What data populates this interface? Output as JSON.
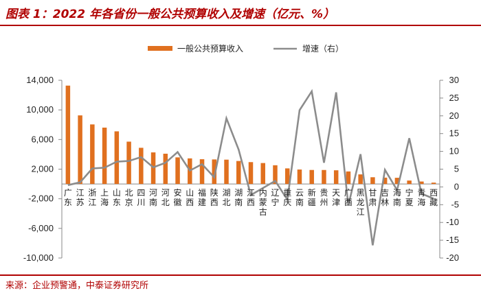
{
  "header": {
    "title": "图表 1：2022 年各省份一般公共预算收入及增速（亿元、%）"
  },
  "footer": {
    "source": "来源：企业预警通，中泰证券研究所"
  },
  "colors": {
    "bar": "#e0701f",
    "line": "#8c8c8c",
    "accent": "#b00000"
  },
  "chart_data": {
    "type": "bar",
    "title": "",
    "legend_position": "top",
    "grid": false,
    "categories": [
      "广东",
      "江苏",
      "浙江",
      "上海",
      "山东",
      "北京",
      "四川",
      "河南",
      "河北",
      "安徽",
      "山西",
      "福建",
      "陕西",
      "湖北",
      "湖南",
      "江西",
      "内蒙古",
      "辽宁",
      "重庆",
      "云南",
      "新疆",
      "贵州",
      "天津",
      "广西",
      "黑龙江",
      "甘肃",
      "吉林",
      "海南",
      "宁夏",
      "青海",
      "西藏"
    ],
    "series": [
      {
        "name": "一般公共预算收入",
        "type": "bar",
        "axis": "left",
        "values": [
          13280,
          9259,
          8040,
          7608,
          7104,
          5714,
          4882,
          4261,
          4084,
          3589,
          3453,
          3339,
          3311,
          3281,
          3101,
          2948,
          2824,
          2525,
          2103,
          1949,
          1889,
          1886,
          1846,
          1688,
          1291,
          907,
          851,
          833,
          460,
          329,
          180
        ]
      },
      {
        "name": "增速（右）",
        "type": "line",
        "axis": "right",
        "values": [
          0.5,
          1.3,
          5.2,
          5.4,
          7.1,
          7.3,
          8.4,
          5.5,
          6.8,
          9.8,
          4.6,
          6.4,
          2.7,
          19.3,
          10.5,
          -2.3,
          -0.3,
          1.7,
          -3.6,
          21.6,
          26.9,
          6.8,
          26.6,
          -5.2,
          9.2,
          -16.4,
          4.8,
          -0.9,
          13.7,
          -1.9,
          -3.3
        ]
      }
    ],
    "y_left": {
      "ticks": [
        -10000,
        -6000,
        -2000,
        2000,
        6000,
        10000,
        14000
      ],
      "tick_labels": [
        "-10,000",
        "-6,000",
        "-2,000",
        "2,000",
        "6,000",
        "10,000",
        "14,000"
      ],
      "ylim": [
        -10000,
        14000
      ]
    },
    "y_right": {
      "ticks": [
        -20,
        -15,
        -10,
        -5,
        0,
        5,
        10,
        15,
        20,
        25,
        30
      ],
      "tick_labels": [
        "-20",
        "-15",
        "-10",
        "-5",
        "0",
        "5",
        "10",
        "15",
        "20",
        "25",
        "30"
      ],
      "ylim": [
        -20,
        30
      ]
    }
  }
}
